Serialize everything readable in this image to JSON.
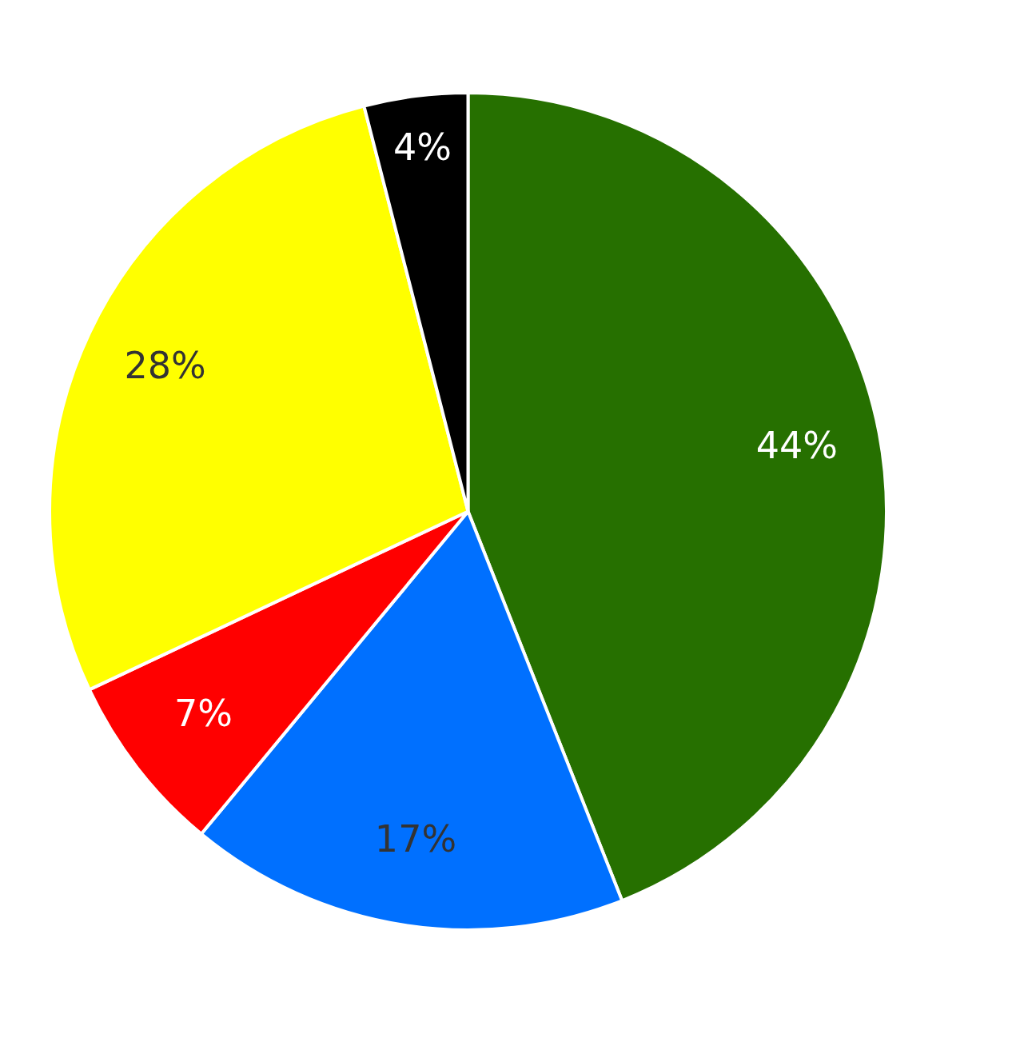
{
  "chart_data": {
    "type": "pie",
    "categories": [
      null,
      null,
      null,
      null,
      null
    ],
    "values": [
      44,
      17,
      7,
      28,
      4
    ],
    "colors": [
      "#267000",
      "#0070ff",
      "#ff0000",
      "#ffff00",
      "#000000"
    ],
    "value_labels": [
      "44%",
      "17%",
      "7%",
      "28%",
      "4%"
    ],
    "legend": false
  }
}
